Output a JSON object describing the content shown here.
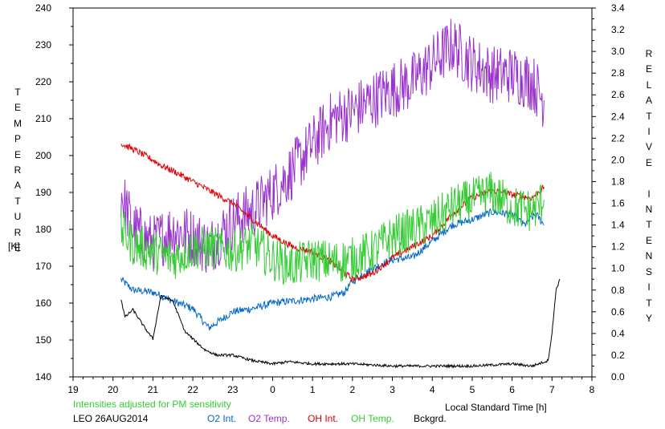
{
  "chart_data": {
    "type": "line",
    "xlabel": "Local Standard Time [h]",
    "ylabel_left": "TEMPERATURE",
    "ylabel_left_unit": "[K]",
    "ylabel_right": "RELATIVE INTENSITY",
    "x_ticks": [
      "19",
      "20",
      "21",
      "22",
      "23",
      "0",
      "1",
      "2",
      "3",
      "4",
      "5",
      "6",
      "7",
      "8"
    ],
    "y_left_ticks": [
      "140",
      "150",
      "160",
      "170",
      "180",
      "190",
      "200",
      "210",
      "220",
      "230",
      "240"
    ],
    "y_left_lim": [
      140,
      240
    ],
    "y_right_ticks": [
      "0.0",
      "0.2",
      "0.4",
      "0.6",
      "0.8",
      "1.0",
      "1.2",
      "1.4",
      "1.6",
      "1.8",
      "2.0",
      "2.2",
      "2.4",
      "2.6",
      "2.8",
      "3.0",
      "3.2",
      "3.4"
    ],
    "y_right_lim": [
      0,
      3.4
    ],
    "note": "Intensities adjusted for PM sensitivity",
    "station_date": "LEO 26AUG2014",
    "grid": false,
    "legend_position": "bottom",
    "series": [
      {
        "name": "O2 Int.",
        "color": "#0066cc",
        "axis": "right",
        "noise": 0.035,
        "points": [
          [
            20.2,
            0.9
          ],
          [
            20.5,
            0.8
          ],
          [
            21.0,
            0.78
          ],
          [
            21.5,
            0.7
          ],
          [
            22.0,
            0.63
          ],
          [
            22.4,
            0.45
          ],
          [
            23.0,
            0.6
          ],
          [
            23.5,
            0.63
          ],
          [
            0.0,
            0.68
          ],
          [
            0.5,
            0.7
          ],
          [
            1.0,
            0.72
          ],
          [
            1.5,
            0.74
          ],
          [
            1.8,
            0.78
          ],
          [
            2.0,
            0.88
          ],
          [
            2.5,
            1.0
          ],
          [
            3.0,
            1.08
          ],
          [
            3.5,
            1.1
          ],
          [
            4.0,
            1.25
          ],
          [
            4.5,
            1.4
          ],
          [
            5.0,
            1.45
          ],
          [
            5.5,
            1.52
          ],
          [
            6.0,
            1.5
          ],
          [
            6.3,
            1.4
          ],
          [
            6.6,
            1.5
          ],
          [
            6.8,
            1.4
          ]
        ]
      },
      {
        "name": "O2 Temp.",
        "color": "#9933cc",
        "axis": "left",
        "noise": 8,
        "points": [
          [
            20.2,
            190
          ],
          [
            20.5,
            180
          ],
          [
            21.0,
            176
          ],
          [
            21.5,
            180
          ],
          [
            22.0,
            178
          ],
          [
            22.4,
            175
          ],
          [
            22.8,
            180
          ],
          [
            23.0,
            182
          ],
          [
            23.5,
            185
          ],
          [
            0.0,
            190
          ],
          [
            0.5,
            196
          ],
          [
            1.0,
            203
          ],
          [
            1.5,
            210
          ],
          [
            2.0,
            212
          ],
          [
            2.5,
            215
          ],
          [
            3.0,
            218
          ],
          [
            3.5,
            220
          ],
          [
            4.0,
            225
          ],
          [
            4.5,
            230
          ],
          [
            5.0,
            225
          ],
          [
            5.5,
            222
          ],
          [
            6.0,
            222
          ],
          [
            6.5,
            220
          ],
          [
            6.8,
            215
          ]
        ]
      },
      {
        "name": "OH Int.",
        "color": "#dd0000",
        "axis": "right",
        "noise": 0.03,
        "points": [
          [
            20.2,
            2.15
          ],
          [
            20.5,
            2.1
          ],
          [
            21.0,
            2.0
          ],
          [
            21.2,
            1.95
          ],
          [
            21.5,
            1.9
          ],
          [
            22.0,
            1.8
          ],
          [
            22.5,
            1.7
          ],
          [
            23.0,
            1.6
          ],
          [
            23.5,
            1.45
          ],
          [
            0.0,
            1.3
          ],
          [
            0.5,
            1.2
          ],
          [
            1.0,
            1.15
          ],
          [
            1.5,
            1.05
          ],
          [
            2.0,
            0.9
          ],
          [
            2.5,
            0.95
          ],
          [
            3.0,
            1.1
          ],
          [
            3.5,
            1.2
          ],
          [
            4.0,
            1.3
          ],
          [
            4.5,
            1.5
          ],
          [
            5.0,
            1.65
          ],
          [
            5.5,
            1.72
          ],
          [
            6.0,
            1.68
          ],
          [
            6.5,
            1.65
          ],
          [
            6.8,
            1.75
          ]
        ]
      },
      {
        "name": "OH Temp.",
        "color": "#33cc33",
        "axis": "left",
        "noise": 6,
        "points": [
          [
            20.2,
            180
          ],
          [
            20.5,
            176
          ],
          [
            21.0,
            174
          ],
          [
            21.5,
            172
          ],
          [
            22.0,
            175
          ],
          [
            22.5,
            175
          ],
          [
            23.0,
            174
          ],
          [
            23.5,
            176
          ],
          [
            0.0,
            172
          ],
          [
            0.5,
            170
          ],
          [
            1.0,
            172
          ],
          [
            1.5,
            171
          ],
          [
            2.0,
            172
          ],
          [
            2.5,
            174
          ],
          [
            3.0,
            178
          ],
          [
            3.5,
            180
          ],
          [
            4.0,
            182
          ],
          [
            4.5,
            186
          ],
          [
            5.0,
            188
          ],
          [
            5.5,
            190
          ],
          [
            6.0,
            186
          ],
          [
            6.5,
            185
          ],
          [
            6.8,
            188
          ]
        ]
      },
      {
        "name": "Bckgrd.",
        "color": "#000000",
        "axis": "right",
        "noise": 0.012,
        "points": [
          [
            20.2,
            0.72
          ],
          [
            20.3,
            0.55
          ],
          [
            20.5,
            0.62
          ],
          [
            20.8,
            0.45
          ],
          [
            21.0,
            0.35
          ],
          [
            21.2,
            0.75
          ],
          [
            21.5,
            0.7
          ],
          [
            21.8,
            0.42
          ],
          [
            22.0,
            0.35
          ],
          [
            22.3,
            0.25
          ],
          [
            22.6,
            0.2
          ],
          [
            23.0,
            0.2
          ],
          [
            23.5,
            0.15
          ],
          [
            0.0,
            0.12
          ],
          [
            0.4,
            0.14
          ],
          [
            1.0,
            0.12
          ],
          [
            2.0,
            0.12
          ],
          [
            3.0,
            0.1
          ],
          [
            4.0,
            0.1
          ],
          [
            5.0,
            0.1
          ],
          [
            6.0,
            0.12
          ],
          [
            6.5,
            0.1
          ],
          [
            6.9,
            0.15
          ],
          [
            7.0,
            0.4
          ],
          [
            7.1,
            0.8
          ],
          [
            7.2,
            0.9
          ]
        ]
      }
    ]
  }
}
